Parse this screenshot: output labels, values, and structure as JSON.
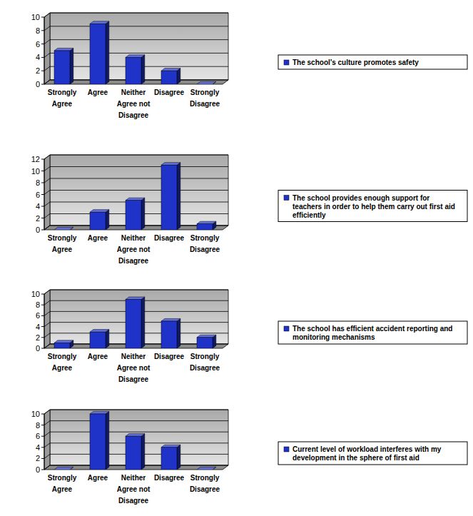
{
  "chart_data": [
    {
      "type": "bar",
      "categories": [
        "Strongly Agree",
        "Agree",
        "Neither Agree not Disagree",
        "Disagree",
        "Strongly Disagree"
      ],
      "series": [
        {
          "name": "The school’s culture promotes safety",
          "color": "#1f33c8",
          "values": [
            5,
            9,
            4,
            2,
            0
          ]
        }
      ],
      "ylim": [
        0,
        10
      ],
      "yticks": [
        0,
        2,
        4,
        6,
        8,
        10
      ],
      "grid": true,
      "legend": "right"
    },
    {
      "type": "bar",
      "categories": [
        "Strongly Agree",
        "Agree",
        "Neither Agree not Disagree",
        "Disagree",
        "Strongly Disagree"
      ],
      "series": [
        {
          "name": "The school provides enough support for teachers in order to help them carry out first aid efficiently",
          "color": "#1f33c8",
          "values": [
            0,
            3,
            5,
            11,
            1
          ]
        }
      ],
      "ylim": [
        0,
        12
      ],
      "yticks": [
        0,
        2,
        4,
        6,
        8,
        10,
        12
      ],
      "grid": true,
      "legend": "right"
    },
    {
      "type": "bar",
      "categories": [
        "Strongly Agree",
        "Agree",
        "Neither Agree not Disagree",
        "Disagree",
        "Strongly Disagree"
      ],
      "series": [
        {
          "name": "The school has efficient accident reporting and monitoring mechanisms",
          "color": "#1f33c8",
          "values": [
            1,
            3,
            9,
            5,
            2
          ]
        }
      ],
      "ylim": [
        0,
        10
      ],
      "yticks": [
        0,
        2,
        4,
        6,
        8,
        10
      ],
      "grid": true,
      "legend": "right"
    },
    {
      "type": "bar",
      "categories": [
        "Strongly Agree",
        "Agree",
        "Neither Agree not Disagree",
        "Disagree",
        "Strongly Disagree"
      ],
      "series": [
        {
          "name": "Current level of workload interferes with my development in the sphere of first aid",
          "color": "#1f33c8",
          "values": [
            0,
            10,
            6,
            4,
            0
          ]
        }
      ],
      "ylim": [
        0,
        10
      ],
      "yticks": [
        0,
        2,
        4,
        6,
        8,
        10
      ],
      "grid": true,
      "legend": "right"
    }
  ]
}
